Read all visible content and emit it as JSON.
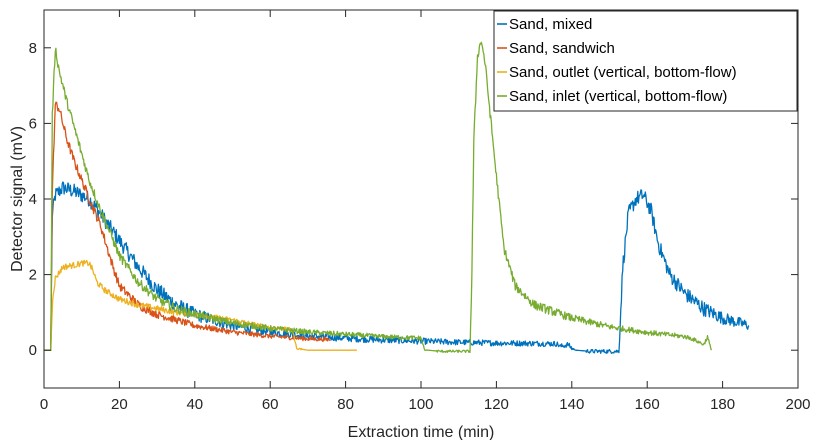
{
  "chart_data": {
    "type": "line",
    "title": "",
    "xlabel": "Extraction time (min)",
    "ylabel": "Detector signal (mV)",
    "xlim": [
      0,
      200
    ],
    "ylim": [
      -1,
      9
    ],
    "xticks": [
      0,
      20,
      40,
      60,
      80,
      100,
      120,
      140,
      160,
      180,
      200
    ],
    "yticks": [
      0,
      2,
      4,
      6,
      8
    ],
    "grid": false,
    "legend_position": "top-right",
    "series": [
      {
        "name": "Sand, mixed",
        "color": "#0072BD",
        "x": [
          0,
          1.8,
          2.2,
          3,
          5,
          8,
          10,
          12,
          15,
          20,
          25,
          30,
          35,
          40,
          50,
          60,
          70,
          80,
          90,
          100,
          110,
          120,
          130,
          136,
          137,
          139,
          140,
          141,
          145,
          150,
          152.5,
          153.5,
          155,
          157,
          159,
          161,
          163,
          166,
          170,
          175,
          180,
          187
        ],
        "y": [
          0,
          0,
          3.6,
          4.1,
          4.3,
          4.2,
          4.1,
          4.0,
          3.6,
          2.9,
          2.2,
          1.6,
          1.2,
          0.95,
          0.65,
          0.48,
          0.38,
          0.32,
          0.27,
          0.24,
          0.21,
          0.19,
          0.18,
          0.17,
          0.1,
          0.15,
          0.05,
          0.0,
          -0.03,
          -0.03,
          -0.03,
          2.2,
          3.6,
          4.0,
          4.1,
          3.7,
          2.8,
          2.0,
          1.5,
          1.1,
          0.85,
          0.65
        ],
        "noise": 0.2
      },
      {
        "name": "Sand, sandwich",
        "color": "#D95319",
        "x": [
          0,
          1.8,
          2.2,
          3,
          4,
          6,
          8,
          10,
          12,
          15,
          18,
          20,
          25,
          30,
          35,
          40,
          50,
          60,
          70,
          76
        ],
        "y": [
          0,
          0,
          4.2,
          6.5,
          6.4,
          5.6,
          5.0,
          4.5,
          4.0,
          3.3,
          2.3,
          1.7,
          1.2,
          0.95,
          0.8,
          0.65,
          0.48,
          0.37,
          0.3,
          0.28
        ],
        "noise": 0.12
      },
      {
        "name": "Sand, outlet (vertical, bottom-flow)",
        "color": "#EDB120",
        "x": [
          0,
          1.8,
          2.3,
          3,
          5,
          8,
          10,
          12,
          13,
          14,
          16,
          20,
          25,
          30,
          35,
          40,
          50,
          60,
          65,
          66,
          67,
          70,
          75,
          80,
          83
        ],
        "y": [
          0,
          0,
          1.4,
          1.9,
          2.2,
          2.25,
          2.3,
          2.3,
          2.1,
          1.8,
          1.6,
          1.35,
          1.2,
          1.1,
          1.0,
          0.95,
          0.8,
          0.6,
          0.55,
          0.5,
          0.05,
          0.0,
          0.0,
          0.0,
          0.0
        ],
        "noise": 0.08
      },
      {
        "name": "Sand, inlet (vertical, bottom-flow)",
        "color": "#77AC30",
        "x": [
          0,
          1.8,
          2.2,
          3,
          4,
          6,
          8,
          10,
          12,
          15,
          18,
          20,
          25,
          30,
          35,
          40,
          50,
          60,
          70,
          80,
          90,
          100,
          101,
          102,
          105,
          110,
          113,
          113.5,
          114,
          115,
          116,
          117,
          118,
          120,
          122,
          125,
          130,
          140,
          150,
          160,
          170,
          172,
          173,
          175,
          176,
          177
        ],
        "y": [
          0,
          0,
          6.2,
          8.0,
          7.4,
          6.6,
          5.9,
          5.2,
          4.5,
          3.7,
          3.0,
          2.5,
          1.8,
          1.35,
          1.1,
          0.95,
          0.72,
          0.58,
          0.48,
          0.42,
          0.36,
          0.32,
          0.0,
          0.0,
          -0.03,
          -0.03,
          -0.03,
          2.0,
          5.5,
          7.8,
          8.2,
          7.6,
          6.6,
          4.6,
          2.7,
          1.7,
          1.2,
          0.85,
          0.62,
          0.47,
          0.36,
          0.3,
          0.25,
          0.15,
          0.35,
          0.0
        ],
        "noise": 0.12
      }
    ]
  }
}
